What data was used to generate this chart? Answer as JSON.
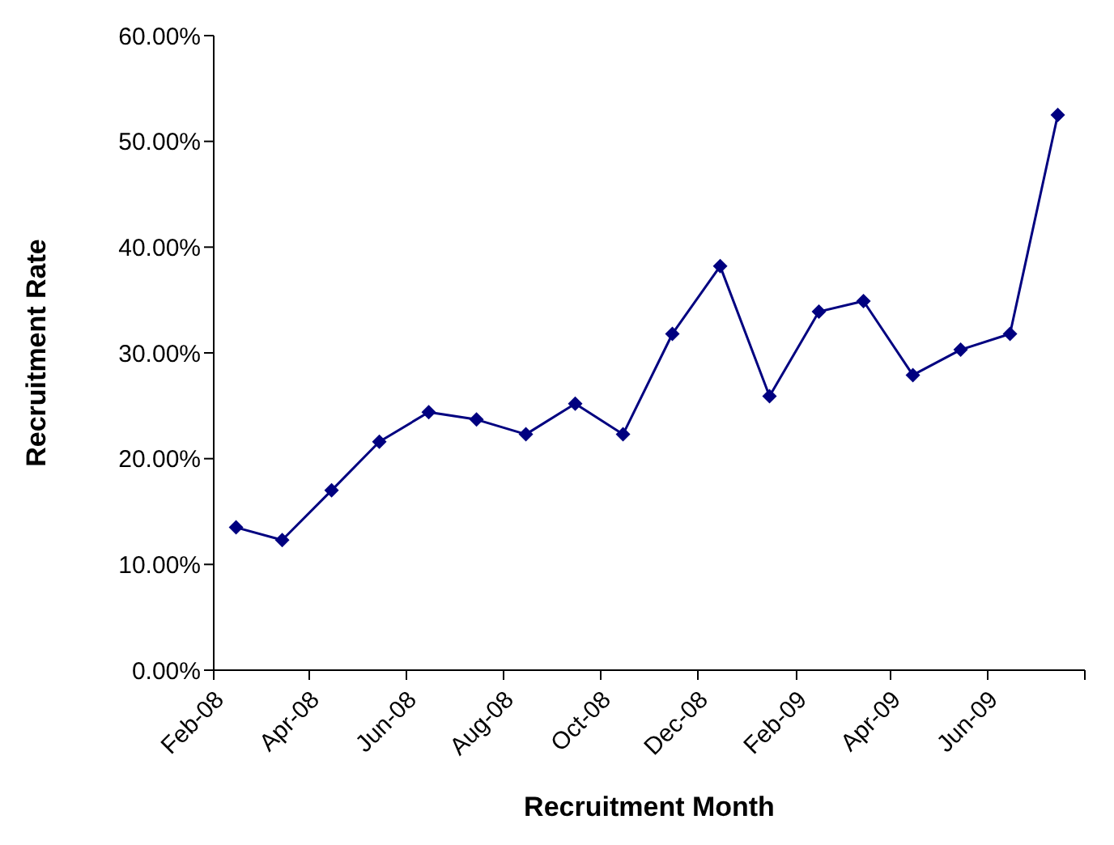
{
  "chart_data": {
    "type": "line",
    "xlabel": "Recruitment Month",
    "ylabel": "Recruitment Rate",
    "x": [
      "2008-02-15",
      "2008-03-15",
      "2008-04-15",
      "2008-05-15",
      "2008-06-15",
      "2008-07-15",
      "2008-08-15",
      "2008-09-15",
      "2008-10-15",
      "2008-11-15",
      "2008-12-15",
      "2009-01-15",
      "2009-02-15",
      "2009-03-15",
      "2009-04-15",
      "2009-05-15",
      "2009-06-15",
      "2009-07-15"
    ],
    "series": [
      {
        "color": "#000080",
        "values": [
          13.5,
          12.3,
          17.0,
          21.6,
          24.4,
          23.7,
          22.3,
          25.2,
          22.3,
          31.8,
          38.2,
          25.9,
          33.9,
          34.9,
          27.9,
          30.3,
          31.8,
          52.5
        ]
      }
    ],
    "xlim": [
      "2008-02",
      "2009-08"
    ],
    "xticks": [
      {
        "value": "2008-02",
        "label": "Feb-08"
      },
      {
        "value": "2008-04",
        "label": "Apr-08"
      },
      {
        "value": "2008-06",
        "label": "Jun-08"
      },
      {
        "value": "2008-08",
        "label": "Aug-08"
      },
      {
        "value": "2008-10",
        "label": "Oct-08"
      },
      {
        "value": "2008-12",
        "label": "Dec-08"
      },
      {
        "value": "2009-02",
        "label": "Feb-09"
      },
      {
        "value": "2009-04",
        "label": "Apr-09"
      },
      {
        "value": "2009-06",
        "label": "Jun-09"
      },
      {
        "value": "2009-08",
        "label": null
      }
    ],
    "ylim": [
      0,
      60
    ],
    "yticks": [
      {
        "value": 0,
        "label": "0.00%"
      },
      {
        "value": 10,
        "label": "10.00%"
      },
      {
        "value": 20,
        "label": "20.00%"
      },
      {
        "value": 30,
        "label": "30.00%"
      },
      {
        "value": 40,
        "label": "40.00%"
      },
      {
        "value": 50,
        "label": "50.00%"
      },
      {
        "value": 60,
        "label": "60.00%"
      }
    ],
    "grid": false,
    "legend": false,
    "marker": "diamond",
    "line_style": "solid"
  }
}
